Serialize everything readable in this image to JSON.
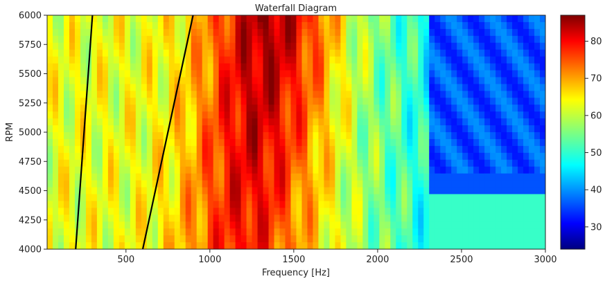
{
  "chart_data": {
    "type": "heatmap",
    "title": "Waterfall Diagram",
    "xlabel": "Frequency [Hz]",
    "ylabel": "RPM",
    "xlim": [
      30,
      3000
    ],
    "ylim": [
      4000,
      6000
    ],
    "x_ticks": [
      500,
      1000,
      1500,
      2000,
      2500,
      3000
    ],
    "x_tick_labels": [
      "500",
      "1000",
      "1500",
      "2000",
      "2500",
      "3000"
    ],
    "y_ticks": [
      4000,
      4250,
      4500,
      4750,
      5000,
      5250,
      5500,
      5750,
      6000
    ],
    "y_tick_labels": [
      "4000",
      "4250",
      "4500",
      "4750",
      "5000",
      "5250",
      "5500",
      "5750",
      "6000"
    ],
    "colormap": "jet",
    "colorbar": {
      "range": [
        24,
        87
      ],
      "ticks": [
        30,
        40,
        50,
        60,
        70,
        80
      ],
      "tick_labels": [
        "30",
        "40",
        "50",
        "60",
        "70",
        "80"
      ]
    },
    "order_lines": [
      {
        "points": [
          [
            200,
            4000
          ],
          [
            300,
            6000
          ]
        ],
        "color": "#000000"
      },
      {
        "points": [
          [
            600,
            4000
          ],
          [
            900,
            6000
          ]
        ],
        "color": "#000000"
      }
    ],
    "grid": false,
    "heatmap_description": {
      "hot_region_center_hz": 1350,
      "hot_region_peak_value": 85,
      "low_region_start_hz": 2300,
      "low_region_value": 37
    }
  }
}
